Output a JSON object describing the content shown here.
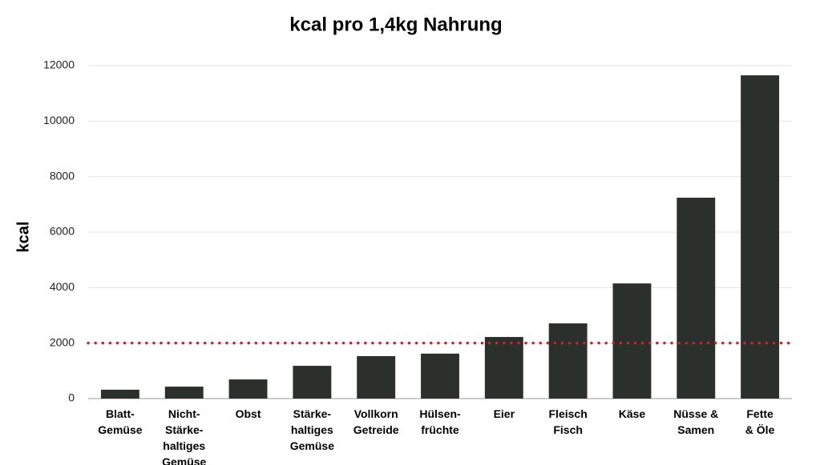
{
  "chart_data": {
    "type": "bar",
    "title": "kcal pro 1,4kg Nahrung",
    "y_label": "kcal",
    "categories": [
      "Blatt-\nGemüse",
      "Nicht-\nStärke-\nhaltiges\nGemüse",
      "Obst",
      "Stärke-\nhaltiges\nGemüse",
      "Vollkorn\nGetreide",
      "Hülsen-\nfrüchte",
      "Eier",
      "Fleisch\nFisch",
      "Käse",
      "Nüsse &\nSamen",
      "Fette\n& Öle"
    ],
    "values": [
      320,
      430,
      690,
      1180,
      1530,
      1620,
      2220,
      2710,
      4150,
      7240,
      11650
    ],
    "color": "#2b302c",
    "ylim": [
      0,
      12000
    ],
    "yticks": [
      0,
      2000,
      4000,
      6000,
      8000,
      10000,
      12000
    ],
    "grid": true,
    "reference_line": {
      "value": 2000,
      "color": "#c0282d"
    }
  }
}
